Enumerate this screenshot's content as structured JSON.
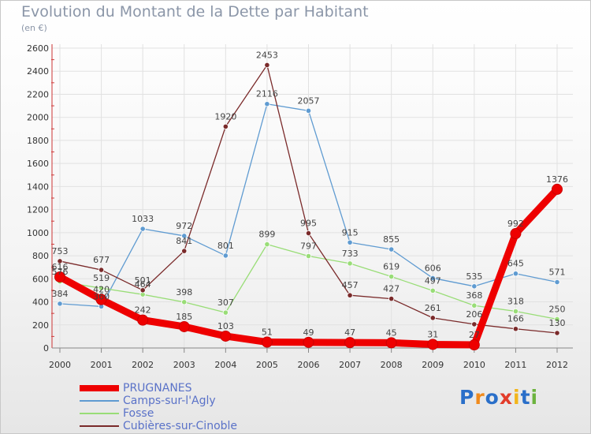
{
  "title": "Evolution du Montant de la Dette par Habitant",
  "subtitle": "(en €)",
  "logo": {
    "letters": [
      "P",
      "r",
      "o",
      "x",
      "i",
      "t",
      "i"
    ],
    "colors": [
      "#2a6fc9",
      "#f08a1c",
      "#2a6fc9",
      "#e23c2a",
      "#f2b51b",
      "#2a6fc9",
      "#6cb33e"
    ]
  },
  "chart_data": {
    "type": "line",
    "x": [
      "2000",
      "2001",
      "2002",
      "2003",
      "2004",
      "2005",
      "2006",
      "2007",
      "2008",
      "2009",
      "2010",
      "2011",
      "2012"
    ],
    "ylim": [
      0,
      2600
    ],
    "yticks": [
      "0",
      "200",
      "400",
      "600",
      "800",
      "1000",
      "1200",
      "1400",
      "1600",
      "1800",
      "2000",
      "2200",
      "2400",
      "2600"
    ],
    "grid": true,
    "legend": "bottom-left",
    "series": [
      {
        "name": "PRUGNANES",
        "color": "#ee0000",
        "values": [
          616,
          420,
          242,
          185,
          103,
          51,
          49,
          47,
          45,
          31,
          27,
          992,
          1376
        ],
        "labels": [
          "616",
          "420",
          "242",
          "185",
          "103",
          "51",
          "49",
          "47",
          "45",
          "31",
          "27",
          "992",
          "1376"
        ]
      },
      {
        "name": "Camps-sur-l'Agly",
        "color": "#5f9bd1",
        "values": [
          384,
          360,
          1033,
          972,
          801,
          2116,
          2057,
          915,
          855,
          606,
          535,
          645,
          571
        ],
        "labels": [
          "384",
          "360",
          "1033",
          "972",
          "801",
          "2116",
          "2057",
          "915",
          "855",
          "606",
          "535",
          "645",
          "571"
        ]
      },
      {
        "name": "Fosse",
        "color": "#99dd77",
        "values": [
          576,
          519,
          464,
          398,
          307,
          899,
          797,
          733,
          619,
          497,
          368,
          318,
          250
        ],
        "labels": [
          "576",
          "519",
          "464",
          "398",
          "307",
          "899",
          "797",
          "733",
          "619",
          "497",
          "368",
          "318",
          "250"
        ]
      },
      {
        "name": "Cubières-sur-Cinoble",
        "color": "#7a2a2a",
        "values": [
          753,
          677,
          501,
          841,
          1920,
          2453,
          995,
          457,
          427,
          261,
          206,
          166,
          130
        ],
        "labels": [
          "753",
          "677",
          "501",
          "841",
          "1920",
          "2453",
          "995",
          "457",
          "427",
          "261",
          "206",
          "166",
          "130"
        ]
      }
    ]
  }
}
